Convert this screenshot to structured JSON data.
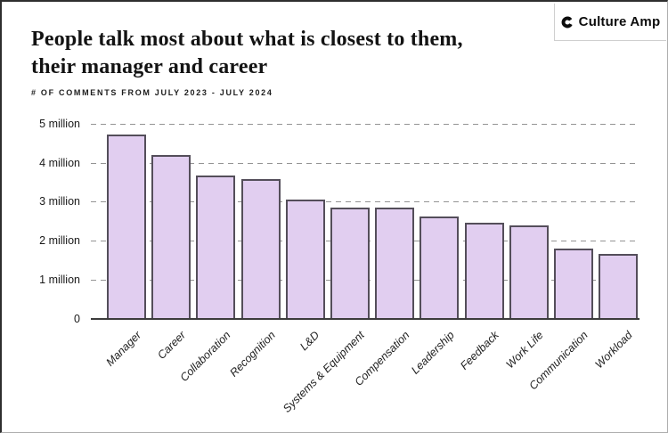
{
  "header": {
    "title_line1": "People talk most about what is closest to them,",
    "title_line2": "their manager and career",
    "subtitle": "# OF COMMENTS FROM JULY 2023 - JULY 2024"
  },
  "brand": {
    "name": "Culture Amp",
    "logo_icon": "culture-amp-c-mark"
  },
  "chart_data": {
    "type": "bar",
    "title": "People talk most about what is closest to them, their manager and career",
    "xlabel": "",
    "ylabel": "# of comments from July 2023 - July 2024",
    "categories": [
      "Manager",
      "Career",
      "Collaboration",
      "Recognition",
      "L&D",
      "Systems & Equipment",
      "Compensation",
      "Leadership",
      "Feedback",
      "Work Life",
      "Communication",
      "Workload"
    ],
    "values_millions": [
      4.72,
      4.2,
      3.68,
      3.57,
      3.05,
      2.84,
      2.84,
      2.61,
      2.47,
      2.38,
      1.8,
      1.66
    ],
    "ylim": [
      0,
      5
    ],
    "yticks": [
      {
        "value": 5,
        "label": "5 million"
      },
      {
        "value": 4,
        "label": "4 million"
      },
      {
        "value": 3,
        "label": "3 million"
      },
      {
        "value": 2,
        "label": "2 million"
      },
      {
        "value": 1,
        "label": "1 million"
      },
      {
        "value": 0,
        "label": "0"
      }
    ],
    "grid": "dashed-horizontal",
    "legend": "none",
    "colors": {
      "bar_fill": "#e1cef0",
      "bar_border": "#544e5a",
      "gridline": "#949494",
      "axis": "#3c3c3c",
      "text": "#131313"
    }
  }
}
